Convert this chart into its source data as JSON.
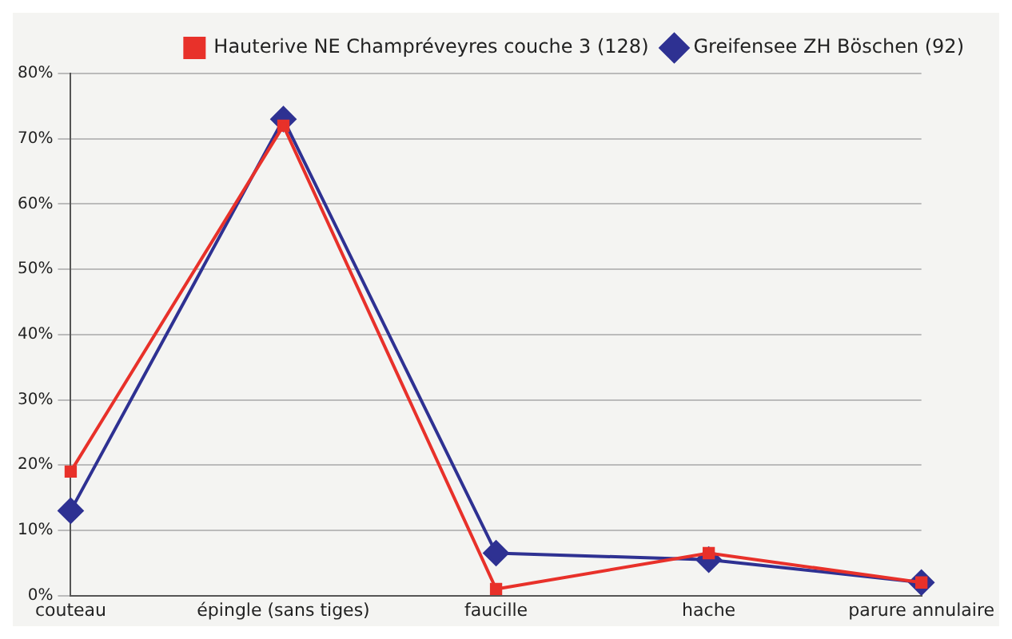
{
  "chart_data": {
    "type": "line",
    "categories": [
      "couteau",
      "épingle (sans tiges)",
      "faucille",
      "hache",
      "parure annulaire"
    ],
    "series": [
      {
        "name": "Greifensee ZH Böschen (92)",
        "color": "#2e3192",
        "marker": "diamond",
        "values": [
          13,
          73,
          6.5,
          5.5,
          2
        ]
      },
      {
        "name": "Hauterive NE Champréveyres couche 3 (128)",
        "color": "#e8312a",
        "marker": "square",
        "values": [
          19,
          72,
          1,
          6.5,
          2
        ]
      }
    ],
    "ylim": [
      0,
      80
    ],
    "yticks": [
      {
        "value": 0,
        "label": "0%"
      },
      {
        "value": 10,
        "label": "10%"
      },
      {
        "value": 20,
        "label": "20%"
      },
      {
        "value": 30,
        "label": "30%"
      },
      {
        "value": 40,
        "label": "40%"
      },
      {
        "value": 50,
        "label": "50%"
      },
      {
        "value": 60,
        "label": "60%"
      },
      {
        "value": 70,
        "label": "70%"
      },
      {
        "value": 80,
        "label": "80%"
      }
    ],
    "grid": "y",
    "legend": "top right",
    "line_style": "solid"
  }
}
